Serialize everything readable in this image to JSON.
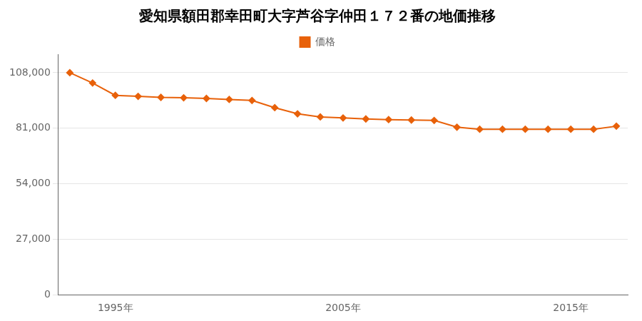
{
  "chart_data": {
    "type": "line",
    "title": "愛知県額田郡幸田町大字芦谷字仲田１７２番の地価推移",
    "x": [
      1993,
      1994,
      1995,
      1996,
      1997,
      1998,
      1999,
      2000,
      2001,
      2002,
      2003,
      2004,
      2005,
      2006,
      2007,
      2008,
      2009,
      2010,
      2011,
      2012,
      2013,
      2014,
      2015,
      2016,
      2017
    ],
    "series": [
      {
        "name": "価格",
        "color": "#E8610A",
        "marker": "diamond",
        "values": [
          108000,
          103000,
          97000,
          96500,
          96000,
          95800,
          95500,
          95000,
          94500,
          91000,
          88000,
          86500,
          86000,
          85500,
          85200,
          85000,
          84800,
          81500,
          80500,
          80500,
          80500,
          80500,
          80500,
          80500,
          82000
        ]
      }
    ],
    "xlim": [
      1992.5,
      2017.5
    ],
    "xticks": [
      {
        "value": 1995,
        "label": "1995年"
      },
      {
        "value": 2005,
        "label": "2005年"
      },
      {
        "value": 2015,
        "label": "2015年"
      }
    ],
    "ylim": [
      0,
      117000
    ],
    "yticks": [
      0,
      {
        "value": 27000,
        "label": "27,000"
      },
      {
        "value": 54000,
        "label": "54,000"
      },
      {
        "value": 81000,
        "label": "81,000"
      },
      {
        "value": 108000,
        "label": "108,000"
      }
    ],
    "grid": "y",
    "legend": "top"
  }
}
